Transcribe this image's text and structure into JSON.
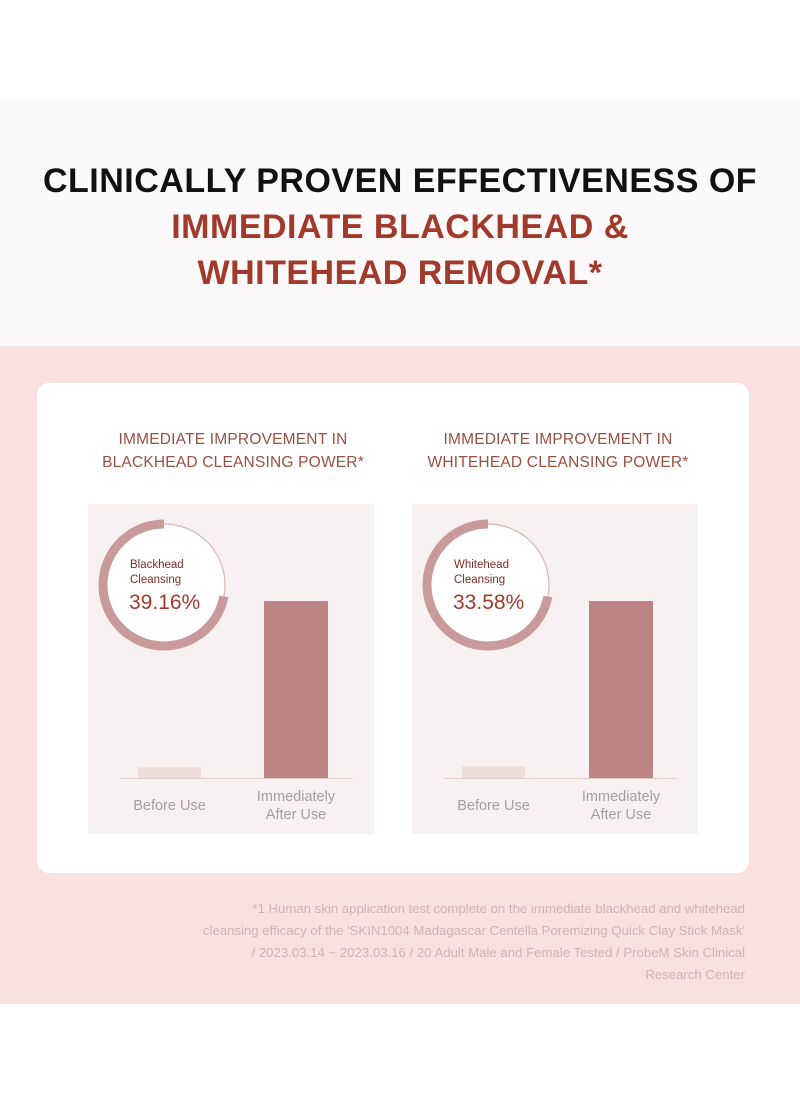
{
  "header": {
    "line1": "CLINICALLY PROVEN EFFECTIVENESS OF",
    "line2": "IMMEDIATE BLACKHEAD &",
    "line3": "WHITEHEAD REMOVAL*"
  },
  "colors": {
    "title_dark": "#111111",
    "title_accent": "#a23a2c",
    "band_bg": "#f9e1e1",
    "panel_bg": "#f8f1f1",
    "bar_after": "#bd8484",
    "bar_before": "#efdcdc",
    "ring_fill": "#c99a9a",
    "ring_track": "#d9b4b4",
    "footnote": "#d2b1b1"
  },
  "chart_data": [
    {
      "type": "bar",
      "title_line1": "IMMEDIATE IMPROVEMENT IN",
      "title_line2": "BLACKHEAD CLEANSING POWER*",
      "categories": [
        {
          "line1": "Before Use",
          "line2": ""
        },
        {
          "line1": "Immediately",
          "line2": "After Use"
        }
      ],
      "values": [
        6,
        100
      ],
      "badge_label_line1": "Blackhead",
      "badge_label_line2": "Cleansing",
      "badge_value": "39.16%",
      "badge_fraction": 0.72
    },
    {
      "type": "bar",
      "title_line1": "IMMEDIATE IMPROVEMENT IN",
      "title_line2": "WHITEHEAD CLEANSING POWER*",
      "categories": [
        {
          "line1": "Before Use",
          "line2": ""
        },
        {
          "line1": "Immediately",
          "line2": "After Use"
        }
      ],
      "values": [
        6,
        92
      ],
      "badge_label_line1": "Whitehead",
      "badge_label_line2": "Cleansing",
      "badge_value": "33.58%",
      "badge_fraction": 0.72
    }
  ],
  "footnote": {
    "line1": "*1 Human skin application test complete on the immediate blackhead and whitehead",
    "line2": "cleansing efficacy of the 'SKIN1004 Madagascar Centella Poremizing Quick Clay Stick Mask'",
    "line3": "/ 2023.03.14 ~ 2023.03.16 / 20 Adult Male and Female Tested / ProbeM Skin Clinical",
    "line4": "Research Center"
  }
}
